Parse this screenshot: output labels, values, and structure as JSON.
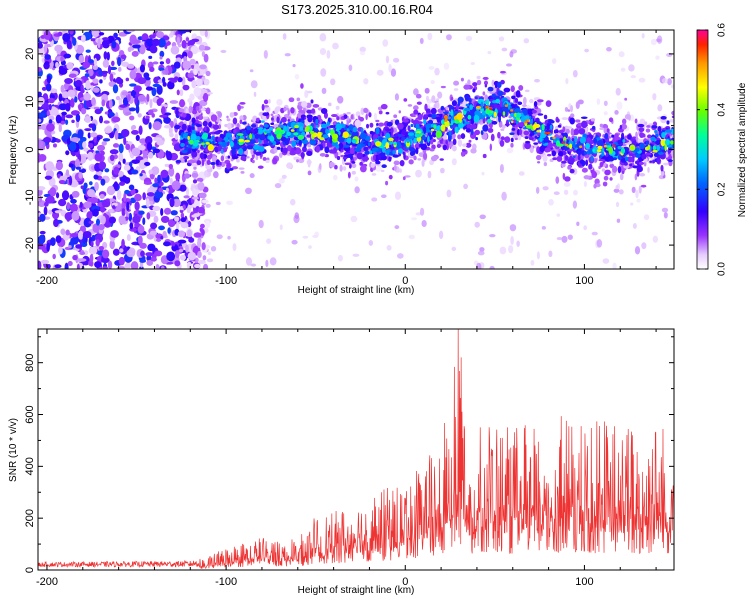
{
  "title": "S173.2025.310.00.16.R04",
  "chart_data": [
    {
      "type": "heatmap",
      "name": "spectrogram",
      "xlabel": "Height of straight line (km)",
      "ylabel": "Frequency (Hz)",
      "xlim": [
        -205,
        150
      ],
      "ylim": [
        -25,
        25
      ],
      "xticks": [
        -200,
        -100,
        0,
        100
      ],
      "yticks": [
        -20,
        -10,
        0,
        10,
        20
      ],
      "grid": false,
      "ridge": {
        "x": [
          -120,
          -100,
          -80,
          -60,
          -40,
          -20,
          0,
          20,
          40,
          55,
          70,
          90,
          110,
          130,
          150
        ],
        "y": [
          2,
          1,
          3,
          4,
          3,
          1,
          2,
          5,
          8,
          9,
          5,
          1,
          0,
          0,
          2
        ]
      },
      "colorbar": {
        "label": "Normalized spectral amplitude",
        "range": [
          0.0,
          0.6
        ],
        "ticks": [
          "0.0",
          "0.2",
          "0.4",
          "0.6"
        ],
        "tick_values": [
          0.0,
          0.2,
          0.4,
          0.6
        ]
      }
    },
    {
      "type": "line",
      "name": "snr",
      "xlabel": "Height of straight line (km)",
      "ylabel": "SNR (10 * v/v)",
      "xlim": [
        -205,
        150
      ],
      "ylim": [
        0,
        930
      ],
      "xticks": [
        -200,
        -100,
        0,
        100
      ],
      "yticks": [
        0,
        200,
        400,
        600,
        800
      ],
      "grid": false,
      "color": "#ee3333",
      "envelope": {
        "x": [
          -205,
          -120,
          -110,
          -100,
          -90,
          -80,
          -70,
          -60,
          -50,
          -40,
          -30,
          -20,
          -10,
          0,
          10,
          20,
          25,
          30,
          35,
          40,
          50,
          60,
          70,
          80,
          90,
          100,
          110,
          120,
          130,
          140,
          150
        ],
        "y": [
          30,
          35,
          50,
          90,
          110,
          130,
          125,
          120,
          210,
          230,
          250,
          300,
          320,
          360,
          450,
          500,
          700,
          930,
          520,
          580,
          590,
          560,
          570,
          580,
          600,
          560,
          590,
          570,
          560,
          580,
          560
        ]
      }
    }
  ]
}
